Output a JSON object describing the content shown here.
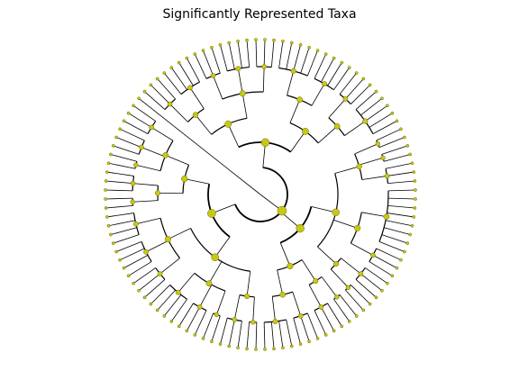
{
  "figure": {
    "title": "Significantly Represented Taxa"
  },
  "style": {
    "node_fill": "#c8c814",
    "node_stroke": "#6b6b00",
    "edge_color": "#000000"
  },
  "tree": {
    "layout": "circular",
    "children": [
      {
        "children": []
      },
      {
        "children": [
          {
            "children": [
              {
                "children": [
                  {
                    "children": [
                      {
                        "children": [
                          {},
                          {},
                          {}
                        ]
                      },
                      {
                        "children": [
                          {},
                          {},
                          {}
                        ]
                      },
                      {
                        "children": [
                          {},
                          {}
                        ]
                      }
                    ]
                  },
                  {
                    "children": [
                      {
                        "children": [
                          {},
                          {},
                          {}
                        ]
                      },
                      {
                        "children": [
                          {},
                          {}
                        ]
                      }
                    ]
                  }
                ]
              },
              {
                "children": [
                  {
                    "children": [
                      {
                        "children": [
                          {},
                          {},
                          {},
                          {}
                        ]
                      },
                      {
                        "children": [
                          {},
                          {},
                          {},
                          {}
                        ]
                      },
                      {
                        "children": [
                          {},
                          {},
                          {}
                        ]
                      }
                    ]
                  },
                  {
                    "children": [
                      {
                        "children": [
                          {},
                          {},
                          {},
                          {}
                        ]
                      },
                      {
                        "children": [
                          {},
                          {},
                          {}
                        ]
                      },
                      {
                        "children": [
                          {},
                          {}
                        ]
                      }
                    ]
                  },
                  {
                    "children": [
                      {
                        "children": [
                          {},
                          {},
                          {}
                        ]
                      },
                      {
                        "children": [
                          {},
                          {}
                        ]
                      }
                    ]
                  }
                ]
              }
            ]
          },
          {
            "children": [
              {
                "children": [
                  {
                    "children": [
                      {
                        "children": [
                          {},
                          {},
                          {},
                          {}
                        ]
                      },
                      {
                        "children": [
                          {},
                          {},
                          {}
                        ]
                      }
                    ]
                  },
                  {
                    "children": [
                      {
                        "children": [
                          {},
                          {},
                          {}
                        ]
                      },
                      {
                        "children": [
                          {},
                          {}
                        ]
                      }
                    ]
                  }
                ]
              },
              {
                "children": [
                  {
                    "children": [
                      {
                        "children": [
                          {},
                          {}
                        ]
                      },
                      {
                        "children": [
                          {},
                          {},
                          {}
                        ]
                      }
                    ]
                  },
                  {
                    "children": [
                      {
                        "children": [
                          {},
                          {},
                          {}
                        ]
                      },
                      {
                        "children": [
                          {},
                          {},
                          {},
                          {},
                          {},
                          {},
                          {},
                          {}
                        ]
                      }
                    ]
                  },
                  {
                    "children": [
                      {
                        "children": [
                          {},
                          {},
                          {}
                        ]
                      },
                      {
                        "children": [
                          {},
                          {}
                        ]
                      },
                      {
                        "children": [
                          {},
                          {}
                        ]
                      }
                    ]
                  }
                ]
              }
            ]
          },
          {
            "children": [
              {
                "children": [
                  {
                    "children": [
                      {
                        "children": [
                          {},
                          {},
                          {},
                          {},
                          {}
                        ]
                      },
                      {
                        "children": [
                          {},
                          {},
                          {}
                        ]
                      }
                    ]
                  },
                  {
                    "children": [
                      {
                        "children": [
                          {},
                          {},
                          {},
                          {}
                        ]
                      },
                      {
                        "children": [
                          {},
                          {},
                          {},
                          {},
                          {}
                        ]
                      }
                    ]
                  }
                ]
              },
              {
                "children": [
                  {
                    "children": [
                      {
                        "children": [
                          {},
                          {},
                          {}
                        ]
                      },
                      {
                        "children": [
                          {},
                          {},
                          {},
                          {}
                        ]
                      },
                      {
                        "children": [
                          {},
                          {},
                          {}
                        ]
                      }
                    ]
                  },
                  {
                    "children": [
                      {
                        "children": [
                          {},
                          {},
                          {},
                          {}
                        ]
                      },
                      {
                        "children": [
                          {},
                          {},
                          {}
                        ]
                      }
                    ]
                  }
                ]
              }
            ]
          }
        ]
      }
    ]
  }
}
